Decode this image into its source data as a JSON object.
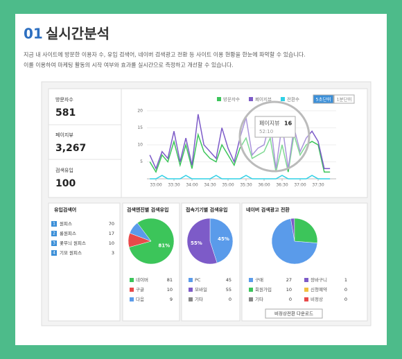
{
  "header": {
    "number": "01",
    "title": "실시간분석",
    "description": [
      "지금 내 사이트에 방문한 이용자 수, 유입 검색어, 네이버 검색광고 전환 등 사이트 이용 현황을 한눈에 파악할 수 있습니다.",
      "이를 이용하여 마케팅 활동의 시작 여부와 효과를 실시간으로 측정하고 개선할 수 있습니다."
    ]
  },
  "stats": [
    {
      "label": "방문자수",
      "value": "581"
    },
    {
      "label": "페이지뷰",
      "value": "3,267"
    },
    {
      "label": "검색유입",
      "value": "100"
    }
  ],
  "controls": [
    "5초단위",
    "1분단위"
  ],
  "tooltip": {
    "name": "페이지뷰",
    "value": 16,
    "time": "52:10"
  },
  "keywords": {
    "title": "유입검색어",
    "items": [
      {
        "rank": "1",
        "keyword": "원피스",
        "count": 70
      },
      {
        "rank": "2",
        "keyword": "롱원피스",
        "count": 17
      },
      {
        "rank": "3",
        "keyword": "꽃무늬 원피스",
        "count": 10
      },
      {
        "rank": "4",
        "keyword": "기모 원피스",
        "count": 3
      }
    ]
  },
  "download_button": "비정상전환 다운로드",
  "chart_data": [
    {
      "type": "line",
      "xlim": [
        32.75,
        38
      ],
      "ylim": [
        0,
        21
      ],
      "yticks": [
        5,
        10,
        15,
        20
      ],
      "xticks": [
        {
          "value": 33,
          "label": "33:00"
        },
        {
          "value": 33.5,
          "label": "33:30"
        },
        {
          "value": 34,
          "label": "34:00"
        },
        {
          "value": 34.5,
          "label": "34:30"
        },
        {
          "value": 35,
          "label": "35:00"
        },
        {
          "value": 35.5,
          "label": "35:30"
        },
        {
          "value": 36,
          "label": "36:00"
        },
        {
          "value": 36.5,
          "label": "36:30"
        },
        {
          "value": 37,
          "label": "37:00"
        },
        {
          "value": 37.5,
          "label": "37:30"
        }
      ],
      "x": [
        32.83,
        33,
        33.17,
        33.33,
        33.5,
        33.67,
        33.83,
        34,
        34.17,
        34.33,
        34.5,
        34.67,
        34.83,
        35,
        35.17,
        35.33,
        35.5,
        35.67,
        35.83,
        36,
        36.17,
        36.33,
        36.5,
        36.67,
        36.83,
        37,
        37.17,
        37.33,
        37.5,
        37.67,
        37.83
      ],
      "series": [
        {
          "name": "방문자수",
          "color": "#3cc55a",
          "values": [
            5,
            2,
            7,
            5,
            11,
            4,
            10,
            3,
            13,
            8,
            6,
            5,
            10,
            7,
            4,
            9,
            12,
            6,
            7,
            8,
            12,
            2,
            10,
            2,
            13,
            7,
            10,
            11,
            10,
            2,
            2
          ]
        },
        {
          "name": "페이지뷰",
          "color": "#7d5bc8",
          "values": [
            7,
            3,
            8,
            6,
            14,
            5,
            12,
            4,
            19,
            10,
            8,
            6,
            15,
            9,
            5,
            12,
            18,
            7,
            9,
            10,
            17,
            3,
            16,
            3,
            15,
            8,
            12,
            14,
            11,
            3,
            3
          ]
        },
        {
          "name": "전환수",
          "color": "#2fd0e6",
          "values": [
            0,
            0,
            1,
            0,
            0,
            0,
            1,
            0,
            0,
            0,
            0,
            1,
            0,
            0,
            0,
            0,
            1,
            0,
            0,
            0,
            0,
            0,
            1,
            0,
            0,
            0,
            0,
            1,
            0,
            0,
            0
          ]
        }
      ]
    },
    {
      "type": "pie",
      "title": "검색엔진별 검색유입",
      "categories": [
        "네이버",
        "구글",
        "다음"
      ],
      "values": [
        81,
        10,
        9
      ],
      "colors": [
        "#3cc55a",
        "#e84a4a",
        "#5a9bea"
      ],
      "value_labels": [
        "81%",
        null,
        null
      ]
    },
    {
      "type": "pie",
      "title": "접속기기별 검색유입",
      "categories": [
        "PC",
        "모바일",
        "기타"
      ],
      "values": [
        45,
        55,
        0
      ],
      "colors": [
        "#5a9bea",
        "#7d5bc8",
        "#888888"
      ],
      "value_labels": [
        "45%",
        "55%",
        null
      ]
    },
    {
      "type": "pie",
      "title": "네이버 검색광고 전환",
      "categories": [
        "구매",
        "장바구니",
        "회원가입",
        "신청예약",
        "기타",
        "비정상"
      ],
      "values": [
        27,
        1,
        10,
        0,
        0,
        0
      ],
      "colors": [
        "#5a9bea",
        "#7d5bc8",
        "#3cc55a",
        "#f0c040",
        "#888888",
        "#e84a4a"
      ],
      "value_labels": [
        null,
        null,
        null,
        null,
        null,
        null
      ]
    }
  ]
}
